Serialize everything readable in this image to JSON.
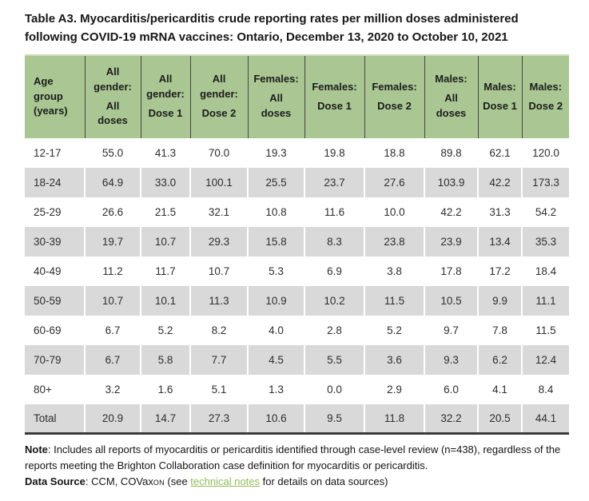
{
  "title": {
    "line1": "Table A3. Myocarditis/pericarditis crude reporting rates per million doses administered",
    "line2": "following COVID-19 mRNA vaccines: Ontario, December 13, 2020 to October 10, 2021"
  },
  "colors": {
    "header_bg": "#a9c693",
    "row_stripe": "#d9d9d9",
    "border_dark": "#474747",
    "link_green": "#93bb59",
    "text": "#1f1f1f"
  },
  "table": {
    "columns": [
      {
        "id": "age-group",
        "label": "Age\ngroup\n(years)",
        "sub": ""
      },
      {
        "id": "all-gender-all-doses",
        "label": "All\ngender:",
        "sub": "All\ndoses"
      },
      {
        "id": "all-gender-dose-1",
        "label": "All\ngender:",
        "sub": "Dose 1"
      },
      {
        "id": "all-gender-dose-2",
        "label": "All\ngender:",
        "sub": "Dose 2"
      },
      {
        "id": "females-all-doses",
        "label": "Females:",
        "sub": "All\ndoses"
      },
      {
        "id": "females-dose-1",
        "label": "Females:",
        "sub": "Dose 1"
      },
      {
        "id": "females-dose-2",
        "label": "Females:",
        "sub": "Dose 2"
      },
      {
        "id": "males-all-doses",
        "label": "Males:",
        "sub": "All\ndoses"
      },
      {
        "id": "males-dose-1",
        "label": "Males:",
        "sub": "Dose 1"
      },
      {
        "id": "males-dose-2",
        "label": "Males:",
        "sub": "Dose 2"
      }
    ],
    "rows": [
      {
        "age": "12-17",
        "values": [
          "55.0",
          "41.3",
          "70.0",
          "19.3",
          "19.8",
          "18.8",
          "89.8",
          "62.1",
          "120.0"
        ]
      },
      {
        "age": "18-24",
        "values": [
          "64.9",
          "33.0",
          "100.1",
          "25.5",
          "23.7",
          "27.6",
          "103.9",
          "42.2",
          "173.3"
        ]
      },
      {
        "age": "25-29",
        "values": [
          "26.6",
          "21.5",
          "32.1",
          "10.8",
          "11.6",
          "10.0",
          "42.2",
          "31.3",
          "54.2"
        ]
      },
      {
        "age": "30-39",
        "values": [
          "19.7",
          "10.7",
          "29.3",
          "15.8",
          "8.3",
          "23.8",
          "23.9",
          "13.4",
          "35.3"
        ]
      },
      {
        "age": "40-49",
        "values": [
          "11.2",
          "11.7",
          "10.7",
          "5.3",
          "6.9",
          "3.8",
          "17.8",
          "17.2",
          "18.4"
        ]
      },
      {
        "age": "50-59",
        "values": [
          "10.7",
          "10.1",
          "11.3",
          "10.9",
          "10.2",
          "11.5",
          "10.5",
          "9.9",
          "11.1"
        ]
      },
      {
        "age": "60-69",
        "values": [
          "6.7",
          "5.2",
          "8.2",
          "4.0",
          "2.8",
          "5.2",
          "9.7",
          "7.8",
          "11.5"
        ]
      },
      {
        "age": "70-79",
        "values": [
          "6.7",
          "5.8",
          "7.7",
          "4.5",
          "5.5",
          "3.6",
          "9.3",
          "6.2",
          "12.4"
        ]
      },
      {
        "age": "80+",
        "values": [
          "3.2",
          "1.6",
          "5.1",
          "1.3",
          "0.0",
          "2.9",
          "6.0",
          "4.1",
          "8.4"
        ]
      },
      {
        "age": "Total",
        "values": [
          "20.9",
          "14.7",
          "27.3",
          "10.6",
          "9.5",
          "11.8",
          "32.2",
          "20.5",
          "44.1"
        ]
      }
    ]
  },
  "notes": {
    "note_label": "Note",
    "note_text": ": Includes all reports of myocarditis or pericarditis identified through case-level review (n=438), regardless of the reports meeting the Brighton Collaboration case definition for myocarditis or pericarditis.",
    "source_label": "Data Source",
    "source_pre": ": CCM, COVax",
    "source_sub": "ON",
    "source_mid": " (see ",
    "link_label": "technical notes",
    "source_post": " for details on data sources)"
  }
}
